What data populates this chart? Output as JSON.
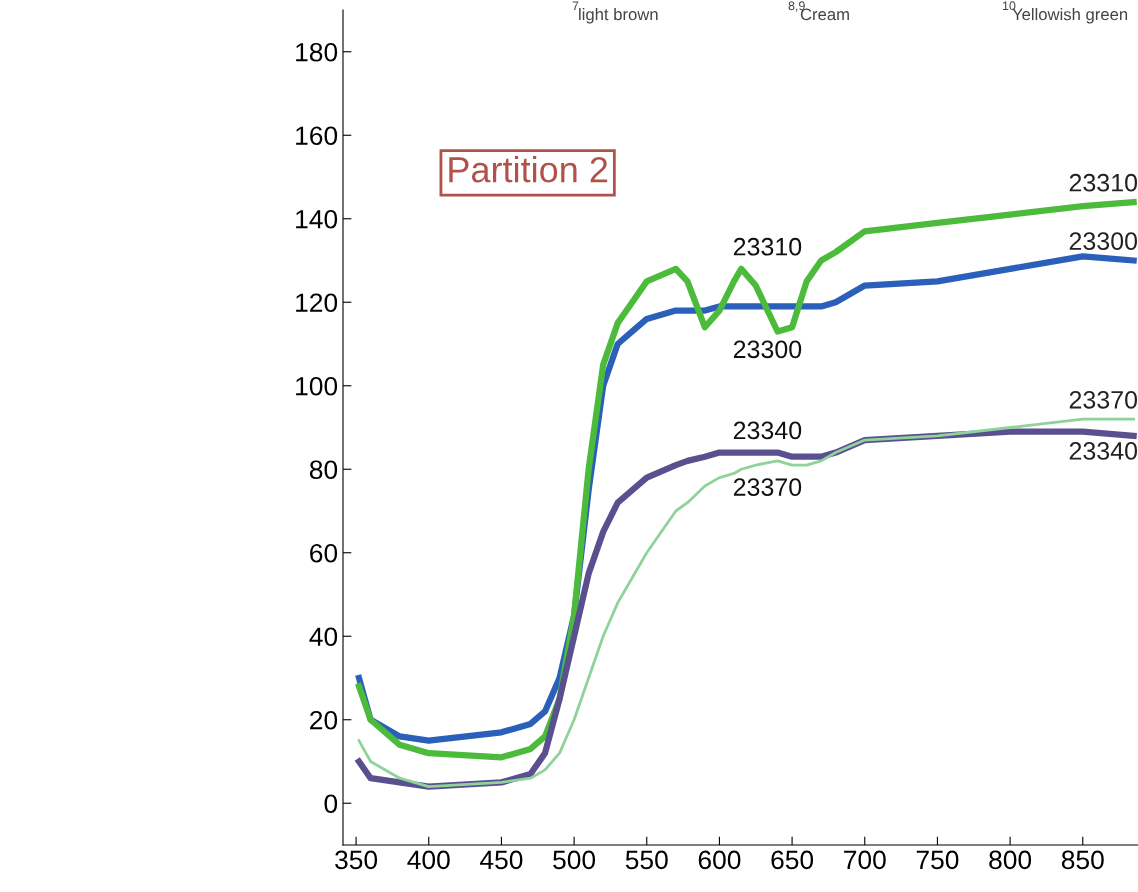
{
  "chart_data": {
    "type": "line",
    "xlim": [
      341,
      888
    ],
    "ylim": [
      -10,
      190
    ],
    "xticks": [
      350,
      400,
      450,
      500,
      550,
      600,
      650,
      700,
      750,
      800,
      850
    ],
    "yticks": [
      0,
      20,
      40,
      60,
      80,
      100,
      120,
      140,
      160,
      180
    ],
    "grid": false,
    "legend": false,
    "marker": "none",
    "line_style": "solid",
    "x": [
      352,
      360,
      380,
      400,
      450,
      470,
      480,
      490,
      500,
      510,
      520,
      530,
      540,
      550,
      570,
      578,
      590,
      600,
      610,
      615,
      625,
      640,
      650,
      660,
      670,
      680,
      700,
      750,
      800,
      850,
      885
    ],
    "series": [
      {
        "name": "23300",
        "color": "#2a5fba",
        "values": [
          30,
          20,
          16,
          15,
          17,
          19,
          22,
          30,
          45,
          75,
          100,
          110,
          113,
          116,
          118,
          118,
          118,
          119,
          119,
          119,
          119,
          119,
          119,
          119,
          119,
          120,
          124,
          125,
          128,
          131,
          130
        ]
      },
      {
        "name": "23310",
        "color": "#4cbb3c",
        "values": [
          28,
          20,
          14,
          12,
          11,
          13,
          16,
          25,
          45,
          80,
          105,
          115,
          120,
          125,
          128,
          125,
          114,
          118,
          125,
          128,
          124,
          113,
          114,
          125,
          130,
          132,
          137,
          139,
          141,
          143,
          144
        ]
      },
      {
        "name": "23340",
        "color": "#5a508f",
        "values": [
          10,
          6,
          5,
          4,
          5,
          7,
          12,
          25,
          40,
          55,
          65,
          72,
          75,
          78,
          81,
          82,
          83,
          84,
          84,
          84,
          84,
          84,
          83,
          83,
          83,
          84,
          87,
          88,
          89,
          89,
          88
        ]
      },
      {
        "name": "23370",
        "color": "#8fd39a",
        "values": [
          15,
          10,
          6,
          4,
          5,
          6,
          8,
          12,
          20,
          30,
          40,
          48,
          54,
          60,
          70,
          72,
          76,
          78,
          79,
          80,
          81,
          82,
          81,
          81,
          82,
          84,
          87,
          88,
          90,
          92,
          92
        ]
      }
    ],
    "annotations": [
      "Partition 2",
      "7",
      "light brown",
      "8,9",
      "Cream",
      "10",
      "Yellowish green",
      "23310",
      "23300",
      "23340",
      "23370"
    ]
  }
}
